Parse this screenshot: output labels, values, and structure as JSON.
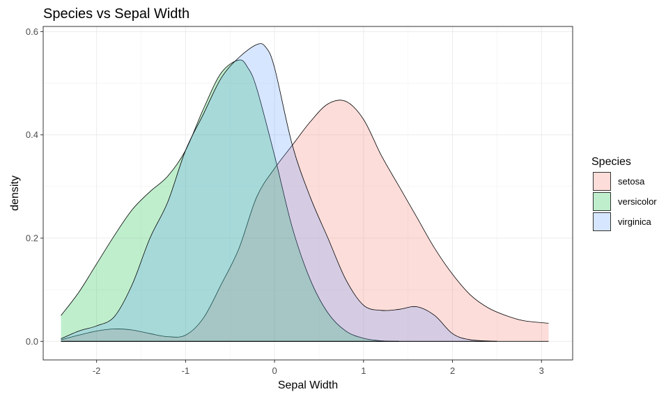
{
  "chart_data": {
    "type": "area",
    "title": "Species vs Sepal Width",
    "xlabel": "Sepal Width",
    "ylabel": "density",
    "xlim": [
      -2.6,
      3.35
    ],
    "ylim": [
      -0.036,
      0.61
    ],
    "x_ticks": [
      -2,
      -1,
      0,
      1,
      2,
      3
    ],
    "y_ticks": [
      0.0,
      0.2,
      0.4,
      0.6
    ],
    "x_tick_labels": [
      "-2",
      "-1",
      "0",
      "1",
      "2",
      "3"
    ],
    "y_tick_labels": [
      "0.0",
      "0.2",
      "0.4",
      "0.6"
    ],
    "grid": true,
    "legend": {
      "title": "Species",
      "position": "right"
    },
    "series": [
      {
        "name": "setosa",
        "color": "#F8766D",
        "x": [
          -2.4,
          -2.2,
          -2.0,
          -1.8,
          -1.6,
          -1.4,
          -1.2,
          -1.0,
          -0.8,
          -0.6,
          -0.4,
          -0.2,
          0.0,
          0.2,
          0.4,
          0.6,
          0.8,
          1.0,
          1.2,
          1.4,
          1.6,
          1.8,
          2.0,
          2.2,
          2.4,
          2.6,
          2.8,
          3.08
        ],
        "y": [
          0.003,
          0.012,
          0.02,
          0.024,
          0.022,
          0.015,
          0.009,
          0.012,
          0.045,
          0.11,
          0.18,
          0.28,
          0.335,
          0.38,
          0.425,
          0.46,
          0.465,
          0.43,
          0.36,
          0.3,
          0.24,
          0.18,
          0.13,
          0.09,
          0.065,
          0.05,
          0.04,
          0.035
        ]
      },
      {
        "name": "versicolor",
        "color": "#00BA38",
        "x": [
          -2.4,
          -2.2,
          -2.0,
          -1.8,
          -1.6,
          -1.4,
          -1.2,
          -1.0,
          -0.8,
          -0.6,
          -0.4,
          -0.3,
          -0.2,
          0.0,
          0.2,
          0.4,
          0.6,
          0.8,
          1.0,
          1.2,
          1.4
        ],
        "y": [
          0.05,
          0.095,
          0.15,
          0.205,
          0.255,
          0.29,
          0.32,
          0.37,
          0.45,
          0.52,
          0.545,
          0.53,
          0.49,
          0.36,
          0.22,
          0.12,
          0.055,
          0.02,
          0.006,
          0.001,
          0.0
        ]
      },
      {
        "name": "virginica",
        "color": "#619CFF",
        "x": [
          -2.4,
          -2.2,
          -2.0,
          -1.8,
          -1.6,
          -1.4,
          -1.2,
          -1.0,
          -0.8,
          -0.6,
          -0.4,
          -0.2,
          -0.1,
          0.0,
          0.2,
          0.4,
          0.6,
          0.8,
          1.0,
          1.2,
          1.4,
          1.6,
          1.8,
          2.0,
          2.2,
          2.5
        ],
        "y": [
          0.005,
          0.02,
          0.03,
          0.048,
          0.11,
          0.2,
          0.27,
          0.37,
          0.44,
          0.51,
          0.55,
          0.575,
          0.57,
          0.53,
          0.38,
          0.28,
          0.2,
          0.12,
          0.07,
          0.06,
          0.062,
          0.067,
          0.05,
          0.015,
          0.003,
          0.0
        ]
      }
    ]
  }
}
